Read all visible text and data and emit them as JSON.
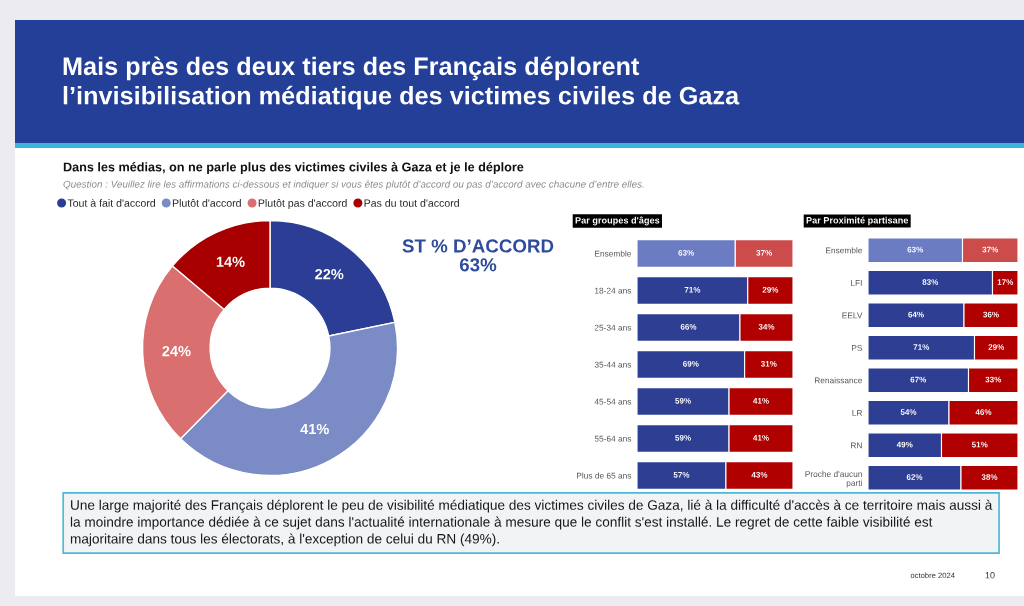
{
  "chart_data": [
    {
      "type": "donut",
      "title": "Mais près des deux tiers des Français déplorent\nl’invisibilisation médiatique des victimes civiles de Gaza",
      "subtitle": "Dans les médias, on ne parle plus des victimes civiles à Gaza et je le déplore",
      "categories": [
        "Tout à fait d'accord",
        "Plutôt d'accord",
        "Plutôt pas d'accord",
        "Pas du tout d'accord"
      ],
      "values": [
        22,
        41,
        24,
        14
      ],
      "value_labels": [
        "22%",
        "41%",
        "24%",
        "14%"
      ],
      "colors": [
        "#2b3d94",
        "#7a8bc6",
        "#d9706f",
        "#a80000"
      ],
      "legend": "top left",
      "annotations": [
        "Question : Veuillez lire les affirmations ci-dessous et indiquer si vous êtes plutôt d’accord ou pas d’accord avec chacune d’entre elles.",
        "ST % D’ACCORD\n63%",
        "Une large majorité des Français déplorent le peu de visibilité médiatique des victimes civiles de Gaza, lié à la difficulté d'accès à ce territoire mais aussi à\nla moindre importance dédiée à ce sujet dans l'actualité internationale à mesure que le conflit s'est installé. Le regret de cette faible visibilité est\nmajoritaire dans tous les électorats, à l'exception de celui du RN (49%).",
        "octobre 2024",
        "10"
      ]
    },
    {
      "type": "bar",
      "title": "Par groupes d'âges",
      "orientation": "horizontal",
      "stacked": true,
      "categories": [
        "Ensemble",
        "18-24 ans",
        "25-34 ans",
        "35-44 ans",
        "45-54 ans",
        "55-64 ans",
        "Plus de 65 ans"
      ],
      "series": [
        {
          "values": [
            63,
            71,
            66,
            69,
            59,
            59,
            57
          ],
          "value_labels": [
            "63%",
            "71%",
            "66%",
            "69%",
            "59%",
            "59%",
            "57%"
          ],
          "colors": [
            "#6b7cc2",
            "#2e3f93",
            "#2e3f93",
            "#2e3f93",
            "#2e3f93",
            "#2e3f93",
            "#2e3f93"
          ]
        },
        {
          "values": [
            37,
            29,
            34,
            31,
            41,
            41,
            43
          ],
          "value_labels": [
            "37%",
            "29%",
            "34%",
            "31%",
            "41%",
            "41%",
            "43%"
          ],
          "colors": [
            "#cc4b4b",
            "#b00000",
            "#b00000",
            "#b00000",
            "#b00000",
            "#b00000",
            "#b00000"
          ]
        }
      ],
      "xlim": [
        0,
        100
      ],
      "tick_labels": "y"
    },
    {
      "type": "bar",
      "title": "Par Proximité partisane",
      "orientation": "horizontal",
      "stacked": true,
      "categories": [
        "Ensemble",
        "LFI",
        "EELV",
        "PS",
        "Renaissance",
        "LR",
        "RN",
        "Proche d'aucun\nparti"
      ],
      "series": [
        {
          "values": [
            63,
            83,
            64,
            71,
            67,
            54,
            49,
            62
          ],
          "value_labels": [
            "63%",
            "83%",
            "64%",
            "71%",
            "67%",
            "54%",
            "49%",
            "62%"
          ],
          "colors": [
            "#6b7cc2",
            "#2e3f93",
            "#2e3f93",
            "#2e3f93",
            "#2e3f93",
            "#2e3f93",
            "#2e3f93",
            "#2e3f93"
          ]
        },
        {
          "values": [
            37,
            17,
            36,
            29,
            33,
            46,
            51,
            38
          ],
          "value_labels": [
            "37%",
            "17%",
            "36%",
            "29%",
            "33%",
            "46%",
            "51%",
            "38%"
          ],
          "colors": [
            "#cc4b4b",
            "#b00000",
            "#b00000",
            "#b00000",
            "#b00000",
            "#b00000",
            "#b00000",
            "#b00000"
          ]
        }
      ],
      "xlim": [
        0,
        100
      ],
      "tick_labels": "y"
    }
  ]
}
